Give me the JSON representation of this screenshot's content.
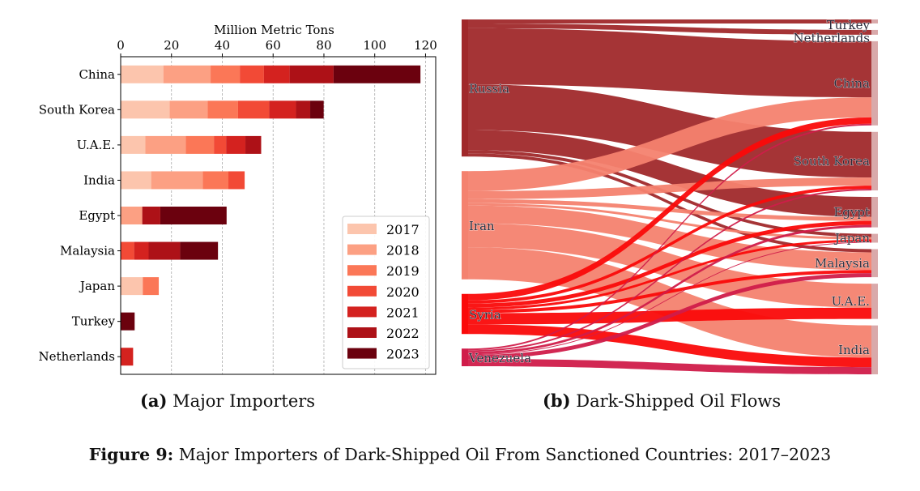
{
  "chart_data": [
    {
      "type": "bar",
      "orientation": "horizontal",
      "stacked": true,
      "xlabel": "Million Metric Tons",
      "xlim": [
        0,
        124
      ],
      "xticks": [
        0,
        20,
        40,
        60,
        80,
        100,
        120
      ],
      "grid": true,
      "legend_position": "bottom-right",
      "categories": [
        "China",
        "South Korea",
        "U.A.E.",
        "India",
        "Egypt",
        "Malaysia",
        "Japan",
        "Turkey",
        "Netherlands"
      ],
      "series": [
        {
          "name": "2017",
          "color": "#fcc5ad",
          "values": [
            16.8,
            19.3,
            9.7,
            12.0,
            0,
            0,
            8.7,
            0,
            0
          ]
        },
        {
          "name": "2018",
          "color": "#fca083",
          "values": [
            18.6,
            14.9,
            15.9,
            20.3,
            8.5,
            0,
            0,
            0,
            0
          ]
        },
        {
          "name": "2019",
          "color": "#fb7757",
          "values": [
            11.5,
            12.0,
            11.1,
            10.1,
            0,
            0,
            6.3,
            0,
            0
          ]
        },
        {
          "name": "2020",
          "color": "#f24a36",
          "values": [
            9.5,
            12.2,
            4.8,
            6.4,
            0,
            5.3,
            0,
            0,
            0
          ]
        },
        {
          "name": "2021",
          "color": "#d4221f",
          "values": [
            10.1,
            10.6,
            7.6,
            0,
            0,
            5.7,
            0,
            0,
            4.9
          ]
        },
        {
          "name": "2022",
          "color": "#ad1117",
          "values": [
            17.3,
            5.6,
            6.2,
            0,
            7.1,
            12.4,
            0,
            0,
            0
          ]
        },
        {
          "name": "2023",
          "color": "#6b010e",
          "values": [
            34.2,
            5.3,
            0,
            0,
            26.1,
            14.9,
            0,
            5.5,
            0
          ]
        }
      ]
    },
    {
      "type": "sankey",
      "sources": [
        {
          "name": "Russia",
          "color": "#a0292b"
        },
        {
          "name": "Iran",
          "color": "#f4826f"
        },
        {
          "name": "Syria",
          "color": "#fa0a0a"
        },
        {
          "name": "Venezuela",
          "color": "#d01c4a"
        }
      ],
      "targets": [
        "Turkey",
        "Netherlands",
        "China",
        "South Korea",
        "Egypt",
        "Japan",
        "Malaysia",
        "U.A.E.",
        "India"
      ],
      "flows": {
        "Russia": [
          5,
          6,
          70,
          57,
          25,
          4,
          4,
          0,
          0
        ],
        "Iran": [
          0,
          0,
          25,
          10,
          5,
          3,
          22,
          30,
          40
        ],
        "Syria": [
          0,
          0,
          8,
          4,
          5,
          3,
          4,
          14,
          12
        ],
        "Venezuela": [
          0,
          0,
          2,
          2,
          3,
          1,
          5,
          0,
          9
        ]
      }
    }
  ],
  "captions": {
    "a_label": "(a)",
    "a_text": "Major Importers",
    "b_label": "(b)",
    "b_text": "Dark-Shipped Oil Flows",
    "figure_label": "Figure 9:",
    "figure_text": "Major Importers of Dark-Shipped Oil From Sanctioned Countries: 2017–2023"
  }
}
